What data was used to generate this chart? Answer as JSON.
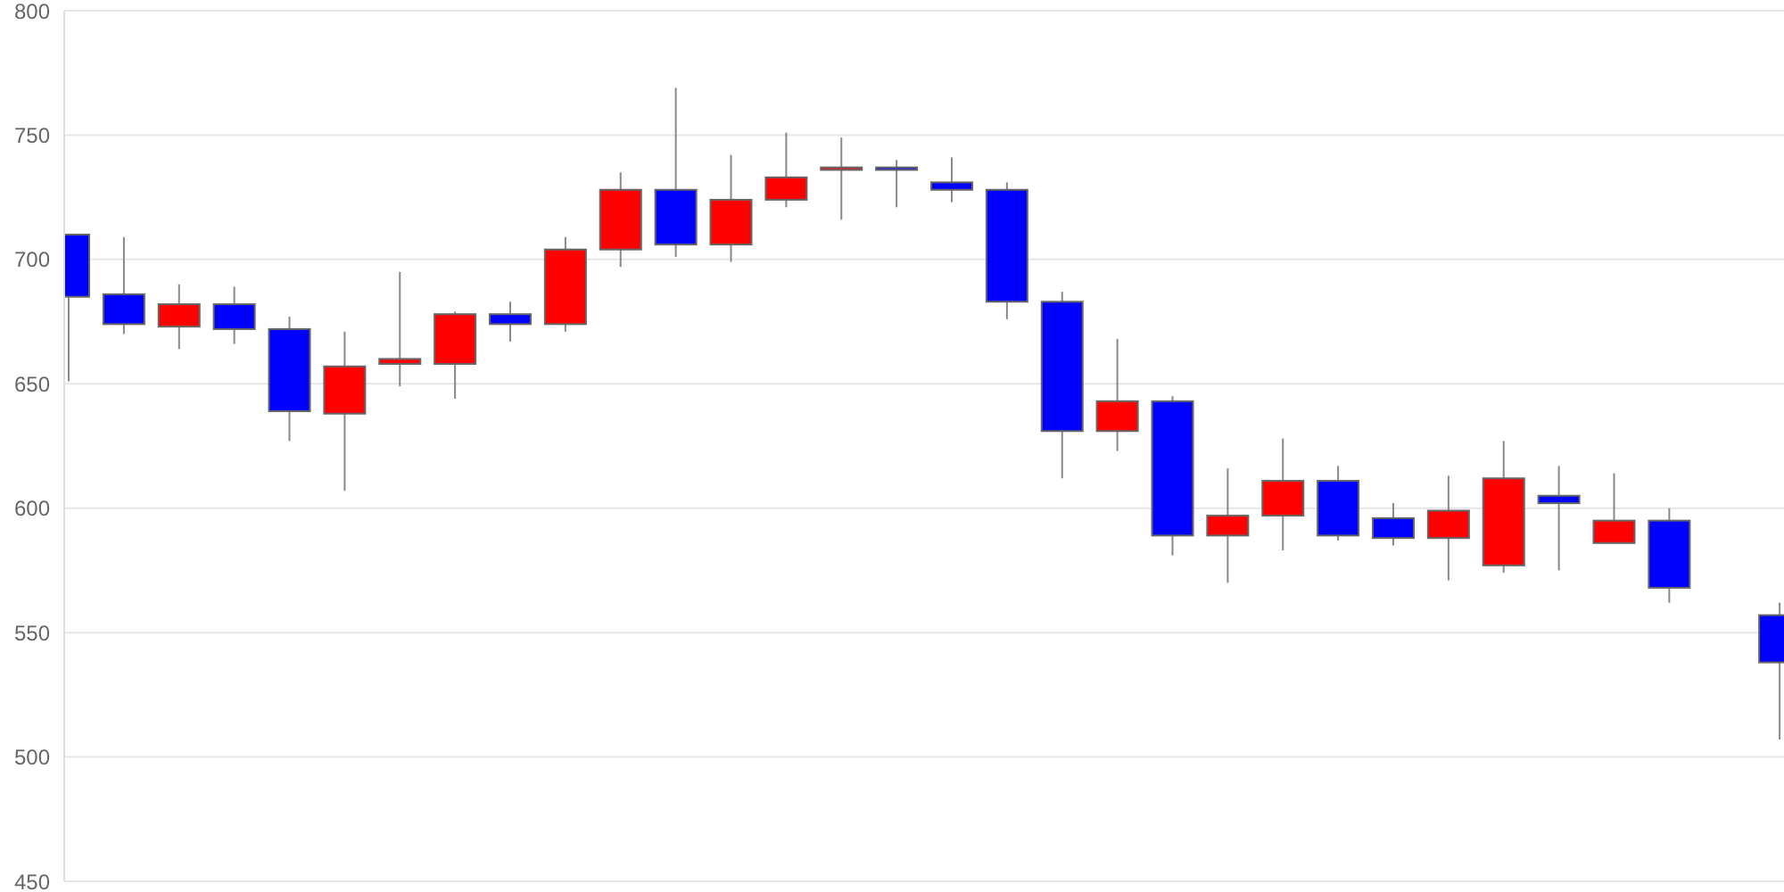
{
  "chart_data": {
    "type": "candlestick",
    "categories": [
      null,
      null,
      null,
      null,
      null,
      null,
      null,
      null,
      null,
      null,
      null,
      null,
      null,
      null,
      null,
      null,
      null,
      null,
      null,
      null,
      null,
      null,
      null,
      null,
      null,
      null,
      null,
      null,
      null,
      null,
      null,
      null
    ],
    "ohlc": [
      [
        710,
        710,
        651,
        685
      ],
      [
        686,
        709,
        670,
        674
      ],
      [
        673,
        690,
        664,
        682
      ],
      [
        682,
        689,
        666,
        672
      ],
      [
        672,
        677,
        627,
        639
      ],
      [
        638,
        671,
        607,
        657
      ],
      [
        658,
        695,
        649,
        660
      ],
      [
        658,
        679,
        644,
        678
      ],
      [
        678,
        683,
        667,
        674
      ],
      [
        674,
        709,
        671,
        704
      ],
      [
        704,
        735,
        697,
        728
      ],
      [
        728,
        769,
        701,
        706
      ],
      [
        706,
        742,
        699,
        724
      ],
      [
        724,
        751,
        721,
        733
      ],
      [
        736,
        749,
        716,
        737
      ],
      [
        737,
        740,
        721,
        736
      ],
      [
        731,
        741,
        723,
        728
      ],
      [
        728,
        731,
        676,
        683
      ],
      [
        683,
        687,
        612,
        631
      ],
      [
        631,
        668,
        623,
        643
      ],
      [
        643,
        645,
        581,
        589
      ],
      [
        589,
        616,
        570,
        597
      ],
      [
        597,
        628,
        583,
        611
      ],
      [
        611,
        617,
        587,
        589
      ],
      [
        596,
        602,
        585,
        588
      ],
      [
        588,
        613,
        571,
        599
      ],
      [
        577,
        627,
        574,
        612
      ],
      [
        605,
        617,
        575,
        602
      ],
      [
        586,
        614,
        586,
        595
      ],
      [
        595,
        600,
        562,
        568
      ],
      null,
      [
        557,
        562,
        507,
        538
      ]
    ],
    "colors": [
      "#0000ff",
      "#0000ff",
      "#ff0000",
      "#0000ff",
      "#0000ff",
      "#ff0000",
      "#ff0000",
      "#ff0000",
      "#0000ff",
      "#ff0000",
      "#ff0000",
      "#0000ff",
      "#ff0000",
      "#ff0000",
      "#ff0000",
      "#0000ff",
      "#0000ff",
      "#0000ff",
      "#0000ff",
      "#ff0000",
      "#0000ff",
      "#ff0000",
      "#ff0000",
      "#0000ff",
      "#0000ff",
      "#ff0000",
      "#ff0000",
      "#0000ff",
      "#ff0000",
      "#0000ff",
      null,
      "#0000ff"
    ],
    "ylim": [
      450,
      800
    ],
    "yticks": [
      450,
      500,
      550,
      600,
      650,
      700,
      750,
      800
    ],
    "grid": "y",
    "tick_labels": "y"
  }
}
